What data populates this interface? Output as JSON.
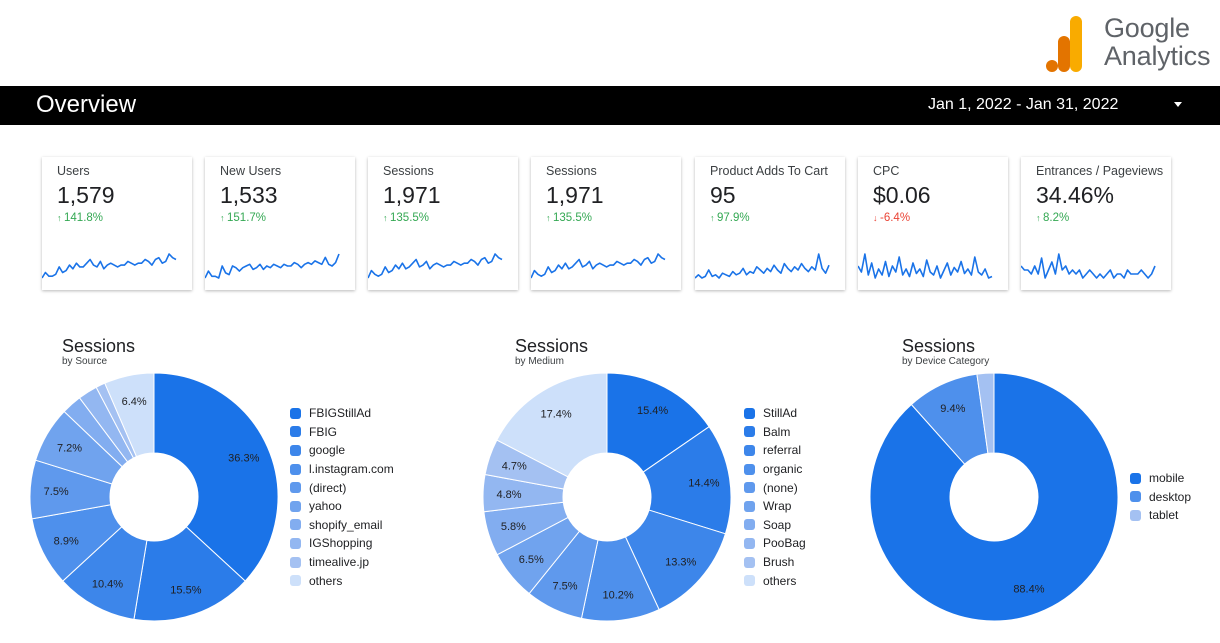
{
  "brand": {
    "line1": "Google",
    "line2": "Analytics"
  },
  "header": {
    "title": "Overview",
    "date_range": "Jan 1, 2022 - Jan 31, 2022"
  },
  "scorecards": [
    {
      "label": "Users",
      "value": "1,579",
      "change": "141.8%",
      "direction": "up",
      "spark": [
        3,
        6,
        4,
        4,
        5,
        9,
        6,
        7,
        10,
        8,
        11,
        9,
        9,
        11,
        13,
        10,
        9,
        12,
        8,
        10,
        11,
        10,
        9,
        10,
        10,
        12,
        11,
        10,
        11,
        11,
        13,
        12,
        10,
        13,
        14,
        11,
        12,
        16,
        14,
        13
      ]
    },
    {
      "label": "New Users",
      "value": "1,533",
      "change": "151.7%",
      "direction": "up",
      "spark": [
        5,
        9,
        6,
        6,
        5,
        12,
        8,
        7,
        12,
        11,
        9,
        11,
        12,
        13,
        10,
        11,
        13,
        10,
        12,
        11,
        13,
        12,
        11,
        13,
        12,
        12,
        14,
        13,
        11,
        13,
        14,
        13,
        15,
        14,
        13,
        17,
        13,
        12,
        14,
        19
      ]
    },
    {
      "label": "Sessions",
      "value": "1,971",
      "change": "135.5%",
      "direction": "up",
      "spark": [
        4,
        8,
        6,
        5,
        6,
        10,
        7,
        8,
        11,
        9,
        12,
        9,
        10,
        12,
        14,
        10,
        11,
        13,
        9,
        11,
        12,
        11,
        10,
        11,
        11,
        13,
        12,
        11,
        12,
        12,
        14,
        13,
        11,
        14,
        15,
        12,
        13,
        17,
        15,
        14
      ]
    },
    {
      "label": "Sessions",
      "value": "1,971",
      "change": "135.5%",
      "direction": "up",
      "spark": [
        4,
        8,
        6,
        5,
        6,
        10,
        7,
        8,
        11,
        9,
        12,
        9,
        10,
        12,
        14,
        10,
        11,
        13,
        9,
        11,
        12,
        11,
        10,
        11,
        11,
        13,
        12,
        11,
        12,
        12,
        14,
        13,
        11,
        14,
        15,
        12,
        13,
        17,
        15,
        14
      ]
    },
    {
      "label": "Product Adds To Cart",
      "value": "95",
      "change": "97.9%",
      "direction": "up",
      "spark": [
        3,
        5,
        3,
        4,
        8,
        4,
        5,
        3,
        6,
        5,
        4,
        7,
        5,
        6,
        9,
        5,
        7,
        6,
        10,
        8,
        6,
        9,
        7,
        11,
        8,
        6,
        12,
        9,
        7,
        10,
        8,
        12,
        9,
        7,
        10,
        8,
        18,
        9,
        6,
        11
      ]
    },
    {
      "label": "CPC",
      "value": "$0.06",
      "change": "-6.4%",
      "direction": "down",
      "spark": [
        12,
        8,
        20,
        6,
        14,
        4,
        10,
        6,
        15,
        5,
        12,
        8,
        18,
        6,
        10,
        5,
        14,
        7,
        10,
        5,
        16,
        8,
        6,
        12,
        4,
        9,
        14,
        6,
        11,
        8,
        15,
        7,
        10,
        6,
        18,
        8,
        6,
        10,
        4,
        5
      ]
    },
    {
      "label": "Entrances / Pageviews",
      "value": "34.46%",
      "change": "8.2%",
      "direction": "up",
      "spark": [
        14,
        13,
        13,
        12,
        14,
        12,
        16,
        11,
        13,
        15,
        12,
        17,
        13,
        14,
        12,
        13,
        12,
        13,
        11,
        12,
        13,
        12,
        11,
        12,
        11,
        12,
        13,
        11,
        12,
        12,
        11,
        13,
        12,
        12,
        12,
        13,
        12,
        11,
        12,
        14
      ]
    }
  ],
  "charts": [
    {
      "title": "Sessions",
      "subtitle": "by Source",
      "chart_data": {
        "type": "pie",
        "categories": [
          "FBIGStillAd",
          "FBIG",
          "google",
          "l.instagram.com",
          "(direct)",
          "yahoo",
          "shopify_email",
          "IGShopping",
          "timealive.jp",
          "others"
        ],
        "values": [
          36.3,
          15.5,
          10.4,
          8.9,
          7.5,
          7.2,
          2.6,
          2.5,
          1.2,
          6.4
        ],
        "labels": [
          "36.3%",
          "15.5%",
          "10.4%",
          "8.9%",
          "7.5%",
          "7.2%",
          "",
          "",
          "",
          "6.4%"
        ],
        "colors": [
          "#1a73e8",
          "#2b7ce9",
          "#3d86ea",
          "#4e90ec",
          "#5f99ed",
          "#70a3ee",
          "#82adf0",
          "#93b7f1",
          "#a4c1f2",
          "#cde0fa"
        ],
        "legend": "right"
      }
    },
    {
      "title": "Sessions",
      "subtitle": "by Medium",
      "chart_data": {
        "type": "pie",
        "categories": [
          "StillAd",
          "Balm",
          "referral",
          "organic",
          "(none)",
          "Wrap",
          "Soap",
          "PooBag",
          "Brush",
          "others"
        ],
        "values": [
          15.4,
          14.4,
          13.3,
          10.2,
          7.5,
          6.5,
          5.8,
          4.8,
          4.7,
          17.4
        ],
        "labels": [
          "15.4%",
          "14.4%",
          "13.3%",
          "10.2%",
          "7.5%",
          "6.5%",
          "5.8%",
          "4.8%",
          "4.7%",
          "17.4%"
        ],
        "colors": [
          "#1a73e8",
          "#2b7ce9",
          "#3d86ea",
          "#4e90ec",
          "#5f99ed",
          "#70a3ee",
          "#82adf0",
          "#93b7f1",
          "#a4c1f2",
          "#cde0fa"
        ],
        "legend": "right"
      }
    },
    {
      "title": "Sessions",
      "subtitle": "by Device Category",
      "chart_data": {
        "type": "pie",
        "categories": [
          "mobile",
          "desktop",
          "tablet"
        ],
        "values": [
          88.4,
          9.4,
          2.2
        ],
        "labels": [
          "88.4%",
          "9.4%",
          ""
        ],
        "colors": [
          "#1a73e8",
          "#4e90ec",
          "#a4c1f2"
        ],
        "legend": "right"
      }
    }
  ]
}
